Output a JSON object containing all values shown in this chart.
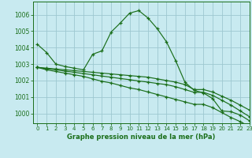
{
  "title": "Graphe pression niveau de la mer (hPa)",
  "background_color": "#c8eaf0",
  "grid_color": "#b8d8e0",
  "line_color": "#1a6e1a",
  "xlim": [
    -0.5,
    23
  ],
  "ylim": [
    999.4,
    1006.8
  ],
  "yticks": [
    1000,
    1001,
    1002,
    1003,
    1004,
    1005,
    1006
  ],
  "ytick_labels": [
    "1000",
    "1001",
    "1002",
    "1003",
    "1004",
    "1005",
    "1006"
  ],
  "xticks": [
    0,
    1,
    2,
    3,
    4,
    5,
    6,
    7,
    8,
    9,
    10,
    11,
    12,
    13,
    14,
    15,
    16,
    17,
    18,
    19,
    20,
    21,
    22,
    23
  ],
  "series": [
    [
      1004.2,
      1003.7,
      1003.0,
      1002.85,
      1002.75,
      1002.65,
      1003.6,
      1003.8,
      1004.95,
      1005.5,
      1006.1,
      1006.25,
      1005.8,
      1005.15,
      1004.35,
      1003.2,
      1001.9,
      1001.4,
      1001.25,
      1000.9,
      1000.15,
      1000.1,
      999.9,
      999.55
    ],
    [
      1002.8,
      1002.75,
      1002.7,
      1002.65,
      1002.6,
      1002.55,
      1002.5,
      1002.45,
      1002.4,
      1002.35,
      1002.3,
      1002.25,
      1002.2,
      1002.1,
      1002.0,
      1001.9,
      1001.75,
      1001.45,
      1001.45,
      1001.3,
      1001.05,
      1000.8,
      1000.5,
      1000.2
    ],
    [
      1002.8,
      1002.72,
      1002.65,
      1002.57,
      1002.5,
      1002.42,
      1002.35,
      1002.27,
      1002.2,
      1002.12,
      1002.05,
      1001.97,
      1001.9,
      1001.82,
      1001.75,
      1001.62,
      1001.45,
      1001.28,
      1001.28,
      1001.1,
      1000.8,
      1000.5,
      1000.15,
      999.8
    ],
    [
      1002.8,
      1002.65,
      1002.55,
      1002.45,
      1002.35,
      1002.25,
      1002.1,
      1001.95,
      1001.85,
      1001.7,
      1001.55,
      1001.45,
      1001.3,
      1001.15,
      1001.0,
      1000.85,
      1000.7,
      1000.55,
      1000.55,
      1000.35,
      1000.05,
      999.75,
      999.5,
      999.2
    ]
  ]
}
